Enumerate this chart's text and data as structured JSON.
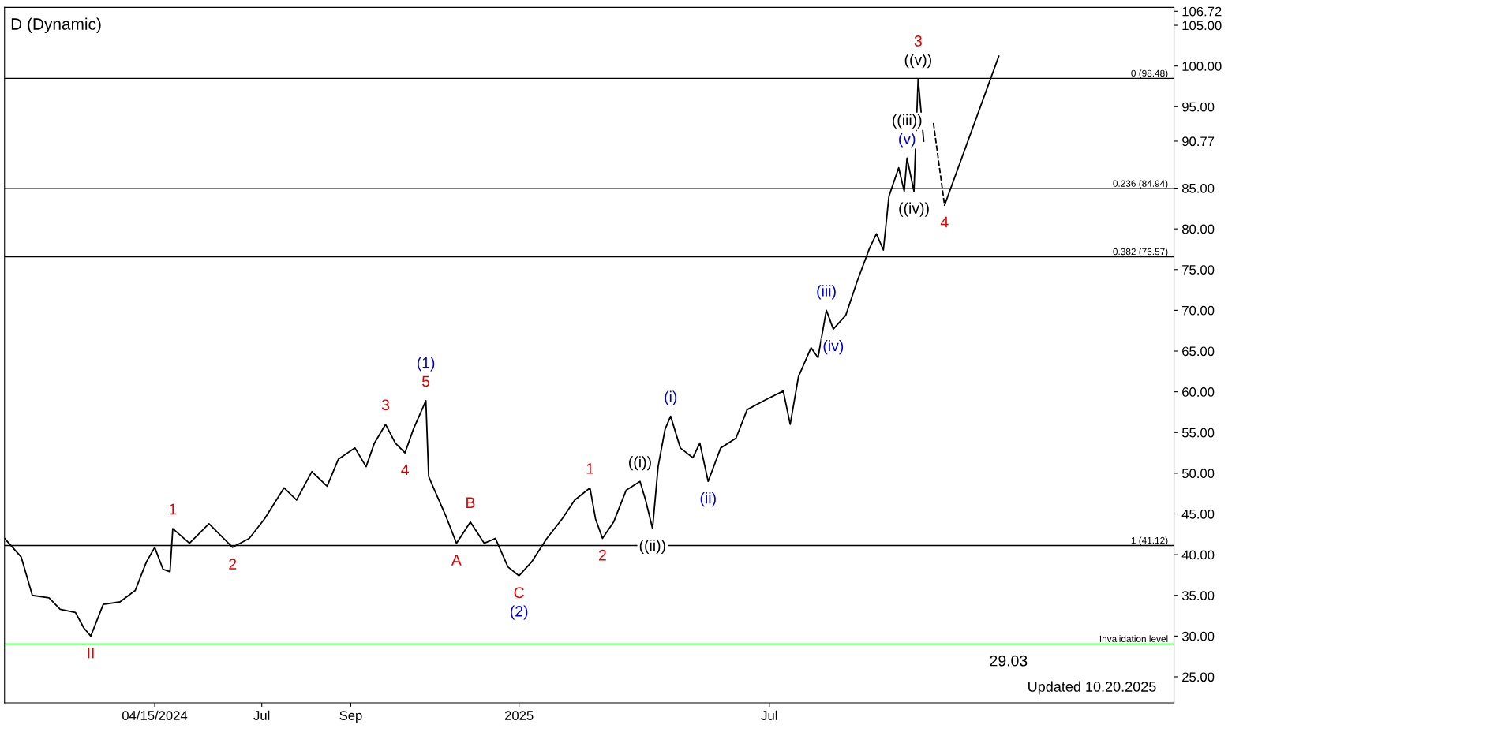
{
  "chart_data": {
    "type": "line",
    "title": "D (Dynamic)",
    "xlim": [
      "2023-12-29",
      "2026-04-18"
    ],
    "xticks": [
      {
        "value": "2024-04-15",
        "label": "04/15/2024"
      },
      {
        "value": "2024-07-01",
        "label": "Jul"
      },
      {
        "value": "2024-09-03",
        "label": "Sep"
      },
      {
        "value": "2025-01-02",
        "label": "2025"
      },
      {
        "value": "2025-07-01",
        "label": "Jul"
      }
    ],
    "ylim": [
      21.8,
      107.2
    ],
    "yticks": [
      {
        "value": 25,
        "label": "25.00"
      },
      {
        "value": 30,
        "label": "30.00"
      },
      {
        "value": 35,
        "label": "35.00"
      },
      {
        "value": 40,
        "label": "40.00"
      },
      {
        "value": 45,
        "label": "45.00"
      },
      {
        "value": 50,
        "label": "50.00"
      },
      {
        "value": 55,
        "label": "55.00"
      },
      {
        "value": 60,
        "label": "60.00"
      },
      {
        "value": 65,
        "label": "65.00"
      },
      {
        "value": 70,
        "label": "70.00"
      },
      {
        "value": 75,
        "label": "75.00"
      },
      {
        "value": 80,
        "label": "80.00"
      },
      {
        "value": 85,
        "label": "85.00"
      },
      {
        "value": 90.77,
        "label": "90.77"
      },
      {
        "value": 95,
        "label": "95.00"
      },
      {
        "value": 100,
        "label": "100.00"
      },
      {
        "value": 105,
        "label": "105.00"
      },
      {
        "value": 106.72,
        "label": "106.72"
      }
    ],
    "grid": false,
    "legend": false,
    "series": [
      {
        "color": "#000000",
        "line_style": "solid",
        "x": [
          "2023-12-29",
          "2024-01-10",
          "2024-01-18",
          "2024-01-30",
          "2024-02-07",
          "2024-02-18",
          "2024-02-24",
          "2024-02-29",
          "2024-03-09",
          "2024-03-21",
          "2024-04-01",
          "2024-04-09",
          "2024-04-15",
          "2024-04-21",
          "2024-04-26",
          "2024-04-28",
          "2024-05-10",
          "2024-05-24",
          "2024-06-10",
          "2024-06-22",
          "2024-07-03",
          "2024-07-17",
          "2024-07-26",
          "2024-08-06",
          "2024-08-17",
          "2024-08-25",
          "2024-09-06",
          "2024-09-14",
          "2024-09-20",
          "2024-09-28",
          "2024-10-05",
          "2024-10-12",
          "2024-10-18",
          "2024-10-27",
          "2024-10-29",
          "2024-11-01",
          "2024-11-10",
          "2024-11-18",
          "2024-11-28",
          "2024-12-08",
          "2024-12-16",
          "2024-12-25",
          "2025-01-02",
          "2025-01-11",
          "2025-01-22",
          "2025-02-02",
          "2025-02-11",
          "2025-02-22",
          "2025-02-26",
          "2025-03-03",
          "2025-03-11",
          "2025-03-20",
          "2025-03-30",
          "2025-04-03",
          "2025-04-08",
          "2025-04-12",
          "2025-04-17",
          "2025-04-21",
          "2025-04-28",
          "2025-05-07",
          "2025-05-12",
          "2025-05-18",
          "2025-05-27",
          "2025-06-07",
          "2025-06-15",
          "2025-06-27",
          "2025-07-11",
          "2025-07-16",
          "2025-07-22",
          "2025-07-31",
          "2025-08-05",
          "2025-08-11",
          "2025-08-16",
          "2025-08-25",
          "2025-09-02",
          "2025-09-11",
          "2025-09-16",
          "2025-09-21",
          "2025-09-25",
          "2025-10-02",
          "2025-10-06",
          "2025-10-08",
          "2025-10-13",
          "2025-10-14",
          "2025-10-16",
          "2025-10-20"
        ],
        "values": [
          42.0,
          39.7,
          35.0,
          34.7,
          33.3,
          32.9,
          31.0,
          30.0,
          33.9,
          34.2,
          35.6,
          39.1,
          40.9,
          38.2,
          37.9,
          43.2,
          41.4,
          43.8,
          40.9,
          42.0,
          44.4,
          48.2,
          46.7,
          50.2,
          48.4,
          51.7,
          53.1,
          50.8,
          53.7,
          56.0,
          53.7,
          52.5,
          55.4,
          58.9,
          49.6,
          48.4,
          44.9,
          41.4,
          44.0,
          41.4,
          42.0,
          38.5,
          37.4,
          39.1,
          42.0,
          44.4,
          46.7,
          48.2,
          44.4,
          42.0,
          44.0,
          47.9,
          49.0,
          46.7,
          43.2,
          50.8,
          55.4,
          57.0,
          53.1,
          51.9,
          53.7,
          49.0,
          53.1,
          54.3,
          57.8,
          58.9,
          60.1,
          56.0,
          61.9,
          65.4,
          64.2,
          70.0,
          67.7,
          69.4,
          73.5,
          77.6,
          79.4,
          77.4,
          84.0,
          87.5,
          84.6,
          88.7,
          84.6,
          89.3,
          98.4,
          90.77
        ]
      },
      {
        "color": "#000000",
        "line_style": "dashed",
        "x": [
          "2025-10-27",
          "2025-11-04"
        ],
        "values": [
          93.0,
          82.9
        ]
      },
      {
        "color": "#000000",
        "line_style": "solid",
        "x": [
          "2025-11-04",
          "2025-12-13"
        ],
        "values": [
          82.9,
          101.2
        ]
      }
    ],
    "ref_lines": [
      {
        "axis": "y",
        "value": 98.48,
        "label": "0 (98.48)",
        "color": "#000000"
      },
      {
        "axis": "y",
        "value": 84.94,
        "label": "0.236 (84.94)",
        "color": "#000000"
      },
      {
        "axis": "y",
        "value": 76.57,
        "label": "0.382 (76.57)",
        "color": "#000000"
      },
      {
        "axis": "y",
        "value": 41.12,
        "label": "1 (41.12)",
        "color": "#000000"
      },
      {
        "axis": "y",
        "value": 29.03,
        "label": "Invalidation level",
        "color": "#00dd00"
      }
    ],
    "annotations": [
      {
        "text": "II",
        "x": "2024-02-29",
        "y": 30.0
      },
      {
        "text": "1",
        "x": "2024-04-28",
        "y": 43.2
      },
      {
        "text": "2",
        "x": "2024-06-10",
        "y": 40.9
      },
      {
        "text": "3",
        "x": "2024-09-28",
        "y": 56.0
      },
      {
        "text": "4",
        "x": "2024-10-12",
        "y": 52.5
      },
      {
        "text": "5",
        "x": "2024-10-27",
        "y": 58.9
      },
      {
        "text": "(1)",
        "x": "2024-10-27",
        "y": 58.9
      },
      {
        "text": "A",
        "x": "2024-11-18",
        "y": 41.4
      },
      {
        "text": "B",
        "x": "2024-11-28",
        "y": 44.0
      },
      {
        "text": "C",
        "x": "2025-01-02",
        "y": 37.4
      },
      {
        "text": "(2)",
        "x": "2025-01-02",
        "y": 37.4
      },
      {
        "text": "1",
        "x": "2025-02-22",
        "y": 48.2
      },
      {
        "text": "2",
        "x": "2025-03-03",
        "y": 42.0
      },
      {
        "text": "((i))",
        "x": "2025-03-30",
        "y": 49.0
      },
      {
        "text": "((ii))",
        "x": "2025-04-08",
        "y": 43.2
      },
      {
        "text": "(i)",
        "x": "2025-04-21",
        "y": 57.0
      },
      {
        "text": "(ii)",
        "x": "2025-05-18",
        "y": 49.0
      },
      {
        "text": "(iii)",
        "x": "2025-08-11",
        "y": 70.0
      },
      {
        "text": "(iv)",
        "x": "2025-08-16",
        "y": 67.7
      },
      {
        "text": "(v)",
        "x": "2025-10-08",
        "y": 88.7
      },
      {
        "text": "((iii))",
        "x": "2025-10-08",
        "y": 88.7
      },
      {
        "text": "((iv))",
        "x": "2025-10-13",
        "y": 84.6
      },
      {
        "text": "((v))",
        "x": "2025-10-16",
        "y": 98.4
      },
      {
        "text": "3",
        "x": "2025-10-16",
        "y": 98.4
      },
      {
        "text": "4",
        "x": "2025-11-04",
        "y": 82.9
      },
      {
        "text": "29.03",
        "x": "2025-12-20",
        "y": 29.03
      },
      "Updated 10.20.2025"
    ]
  }
}
